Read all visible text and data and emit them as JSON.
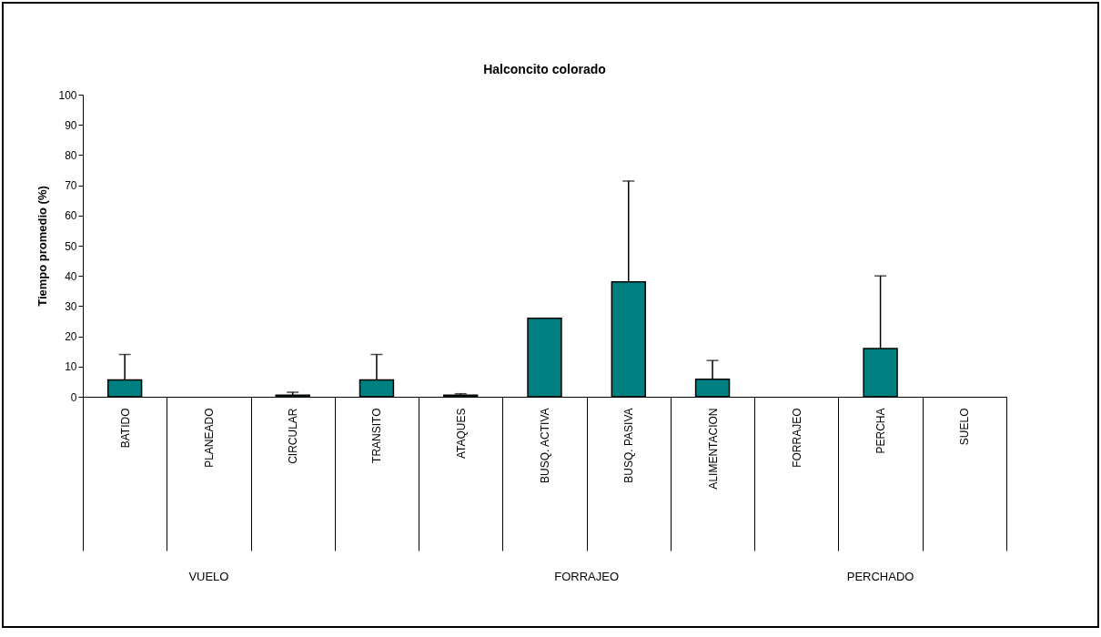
{
  "chart_data": {
    "type": "bar",
    "title": "Halconcito colorado",
    "ylabel": "Tiempo promedio (%)",
    "categories": [
      "BATIDO",
      "PLANEADO",
      "CIRCULAR",
      "TRANSITO",
      "ATAQUES",
      "BUSQ. ACTIVA",
      "BUSQ. PASIVA",
      "ALIMENTACION",
      "FORRAJEO",
      "PERCHA",
      "SUELO"
    ],
    "values": [
      5.6,
      0,
      0.5,
      5.6,
      0.5,
      26,
      38,
      5.8,
      0,
      16,
      0
    ],
    "errors": [
      [
        5.6,
        14
      ],
      null,
      [
        0.5,
        1.5
      ],
      [
        5.6,
        14
      ],
      [
        0.5,
        1
      ],
      null,
      [
        38,
        71.4
      ],
      [
        5.8,
        12
      ],
      null,
      [
        16,
        40
      ],
      null
    ],
    "color": "#008080",
    "ylim": [
      0,
      100
    ],
    "yticks": [
      0,
      10,
      20,
      30,
      40,
      50,
      60,
      70,
      80,
      90,
      100
    ],
    "grid": false,
    "annotations": [
      "VUELO",
      "FORRAJEO",
      "PERCHADO"
    ]
  }
}
